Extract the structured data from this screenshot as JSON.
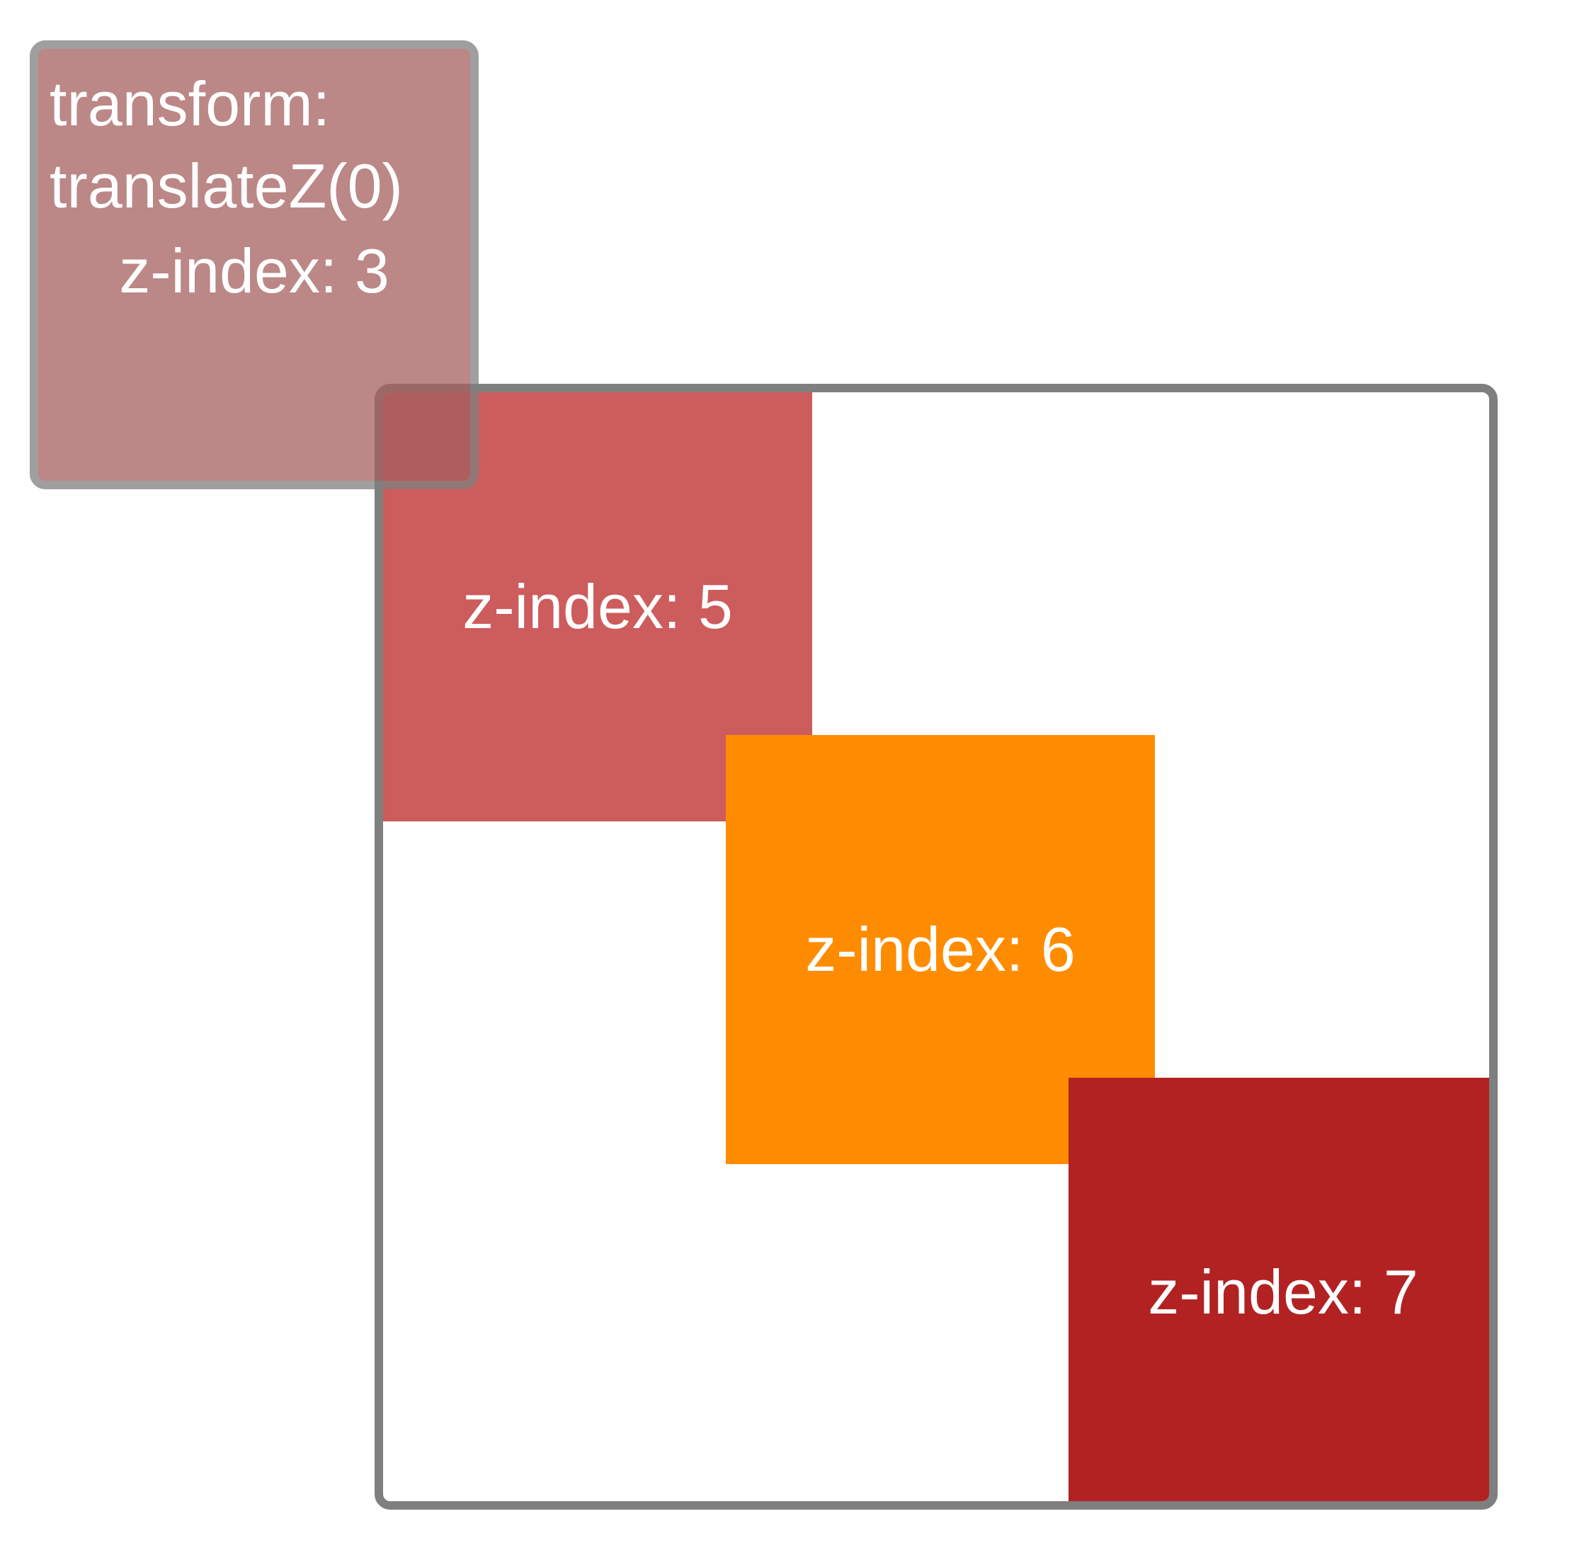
{
  "overlay": {
    "line1": "transform:",
    "line2": "translateZ(0)",
    "z_label": "z-index: 3",
    "color": "#a55f5f"
  },
  "frame": {
    "border_color": "#7f7f7f"
  },
  "boxes": [
    {
      "label": "z-index: 5",
      "color": "#cd5c5c"
    },
    {
      "label": "z-index: 6",
      "color": "#ff8c00"
    },
    {
      "label": "z-index: 7",
      "color": "#b22222"
    }
  ]
}
